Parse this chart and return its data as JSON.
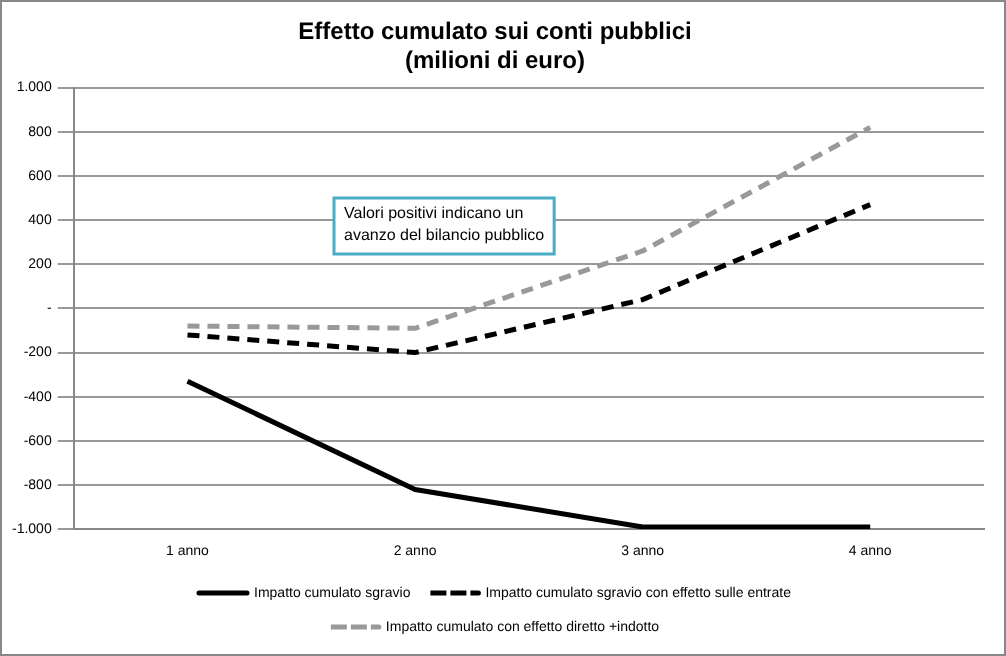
{
  "chart_data": {
    "type": "line",
    "title": "Effetto cumulato sui conti pubblici\n(milioni di euro)",
    "categories": [
      "1 anno",
      "2 anno",
      "3 anno",
      "4 anno"
    ],
    "series": [
      {
        "name": "Impatto cumulato sgravio",
        "color": "#000000",
        "line_style": "solid",
        "values": [
          -330,
          -820,
          -990,
          -990
        ]
      },
      {
        "name": "Impatto cumulato sgravio con effetto sulle entrate",
        "color": "#000000",
        "line_style": "dashed",
        "values": [
          -120,
          -200,
          40,
          470
        ]
      },
      {
        "name": "Impatto cumulato con effetto diretto +indotto",
        "color": "#999999",
        "line_style": "dashed",
        "values": [
          -80,
          -90,
          260,
          820
        ]
      }
    ],
    "ylim": [
      -1000,
      1000
    ],
    "yticks": [
      {
        "value": -1000,
        "label": "-1.000"
      },
      -800,
      -600,
      -400,
      -200,
      {
        "value": 0,
        "label": "-"
      },
      200,
      400,
      600,
      800,
      {
        "value": 1000,
        "label": "1.000"
      }
    ],
    "grid": "y",
    "legend": "bottom",
    "marker": "none",
    "annotations": [
      "Valori positivi indicano un\navanzo del bilancio pubblico"
    ]
  }
}
